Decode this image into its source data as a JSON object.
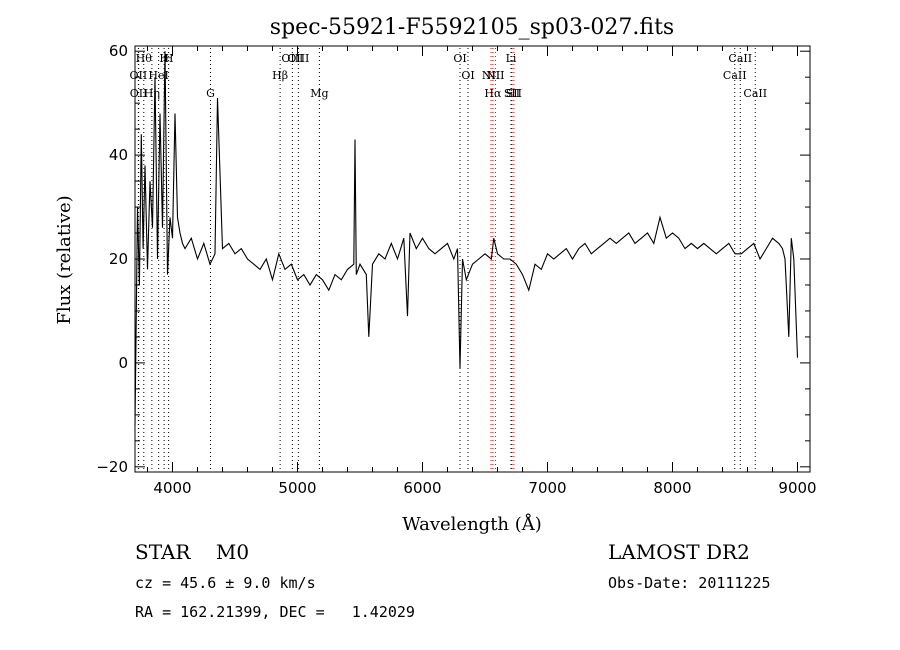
{
  "chart_data": {
    "type": "line",
    "title": "spec-55921-F5592105_sp03-027.fits",
    "xlabel": "Wavelength (Å)",
    "ylabel": "Flux (relative)",
    "xlim": [
      3700,
      9100
    ],
    "ylim": [
      -21,
      61
    ],
    "xticks": [
      {
        "value": 4000,
        "label": "4000"
      },
      {
        "value": 5000,
        "label": "5000"
      },
      {
        "value": 6000,
        "label": "6000"
      },
      {
        "value": 7000,
        "label": "7000"
      },
      {
        "value": 8000,
        "label": "8000"
      },
      {
        "value": 9000,
        "label": "9000"
      }
    ],
    "yticks": [
      {
        "value": -20,
        "label": "−20"
      },
      {
        "value": 0,
        "label": "0"
      },
      {
        "value": 20,
        "label": "20"
      },
      {
        "value": 40,
        "label": "40"
      },
      {
        "value": 60,
        "label": "60"
      }
    ],
    "grid": false,
    "spectrum": {
      "x": [
        3700,
        3720,
        3735,
        3750,
        3765,
        3780,
        3800,
        3820,
        3840,
        3860,
        3880,
        3900,
        3920,
        3940,
        3960,
        3980,
        4000,
        4020,
        4040,
        4060,
        4080,
        4100,
        4150,
        4200,
        4250,
        4300,
        4340,
        4360,
        4400,
        4450,
        4500,
        4550,
        4600,
        4650,
        4700,
        4750,
        4800,
        4850,
        4900,
        4950,
        5000,
        5050,
        5100,
        5150,
        5200,
        5250,
        5300,
        5350,
        5400,
        5450,
        5460,
        5470,
        5500,
        5550,
        5570,
        5600,
        5650,
        5700,
        5750,
        5800,
        5850,
        5880,
        5900,
        5950,
        6000,
        6050,
        6100,
        6150,
        6200,
        6250,
        6280,
        6300,
        6320,
        6350,
        6400,
        6450,
        6500,
        6550,
        6570,
        6600,
        6650,
        6700,
        6750,
        6800,
        6850,
        6900,
        6950,
        7000,
        7050,
        7100,
        7150,
        7200,
        7250,
        7300,
        7350,
        7400,
        7450,
        7500,
        7550,
        7600,
        7650,
        7700,
        7750,
        7800,
        7850,
        7900,
        7950,
        8000,
        8050,
        8100,
        8150,
        8200,
        8250,
        8300,
        8350,
        8400,
        8450,
        8500,
        8550,
        8600,
        8650,
        8700,
        8750,
        8800,
        8850,
        8880,
        8900,
        8930,
        8950,
        8970,
        9000
      ],
      "y": [
        -12,
        30,
        15,
        44,
        22,
        38,
        18,
        35,
        26,
        55,
        20,
        48,
        26,
        60,
        17,
        28,
        24,
        48,
        28,
        25,
        23,
        22,
        24,
        20,
        23,
        19,
        21,
        51,
        22,
        23,
        21,
        22,
        20,
        19,
        18,
        20,
        16,
        21,
        18,
        19,
        16,
        17,
        15,
        17,
        16,
        14,
        17,
        16,
        18,
        19,
        43,
        17,
        19,
        17,
        5,
        19,
        21,
        20,
        23,
        20,
        24,
        9,
        25,
        22,
        24,
        22,
        21,
        22,
        23,
        20,
        22,
        -1,
        20,
        16,
        19,
        20,
        21,
        20,
        24,
        21,
        20,
        20,
        19,
        17,
        14,
        19,
        18,
        21,
        20,
        21,
        22,
        20,
        22,
        23,
        21,
        22,
        23,
        24,
        23,
        24,
        25,
        23,
        24,
        25,
        23,
        28,
        24,
        25,
        24,
        22,
        23,
        22,
        23,
        22,
        21,
        22,
        23,
        21,
        21,
        22,
        23,
        20,
        22,
        24,
        23,
        22,
        20,
        5,
        24,
        20,
        1
      ]
    },
    "lines": [
      {
        "x": 3727,
        "label": "OII",
        "row": 1
      },
      {
        "x": 3729,
        "label": "OII",
        "row": 2
      },
      {
        "x": 3770,
        "label": "Hθ",
        "row": 0
      },
      {
        "x": 3835,
        "label": "Hη",
        "row": 2
      },
      {
        "x": 3889,
        "label": "HeI",
        "row": 1
      },
      {
        "x": 3933,
        "label": "H",
        "row": 0
      },
      {
        "x": 3969,
        "label": "H",
        "row": 0
      },
      {
        "x": 4304,
        "label": "G",
        "row": 2
      },
      {
        "x": 4861,
        "label": "Hβ",
        "row": 1
      },
      {
        "x": 4959,
        "label": "OIII",
        "row": 0
      },
      {
        "x": 5007,
        "label": "OIII",
        "row": 0
      },
      {
        "x": 5175,
        "label": "Mg",
        "row": 2
      },
      {
        "x": 6300,
        "label": "OI",
        "row": 0
      },
      {
        "x": 6364,
        "label": "OI",
        "row": 1
      },
      {
        "x": 6548,
        "label": "NII",
        "row": 1
      },
      {
        "x": 6563,
        "label": "Hα",
        "row": 2
      },
      {
        "x": 6583,
        "label": "NII",
        "row": 1
      },
      {
        "x": 6708,
        "label": "Li",
        "row": 0
      },
      {
        "x": 6716,
        "label": "SII",
        "row": 2
      },
      {
        "x": 6731,
        "label": "SII",
        "row": 2
      },
      {
        "x": 8498,
        "label": "CaII",
        "row": 1
      },
      {
        "x": 8542,
        "label": "CaII",
        "row": 0
      },
      {
        "x": 8662,
        "label": "CaII",
        "row": 2
      }
    ]
  },
  "info": {
    "class": "STAR    M0",
    "survey": "LAMOST DR2",
    "cz": "cz = 45.6 ± 9.0 km/s",
    "obs_date": "Obs-Date: 20111225",
    "coords": "RA = 162.21399, DEC =   1.42029"
  },
  "colors": {
    "spectrum": "#000000",
    "line_marker": "#000000",
    "highlight_marker": "#d00000"
  }
}
